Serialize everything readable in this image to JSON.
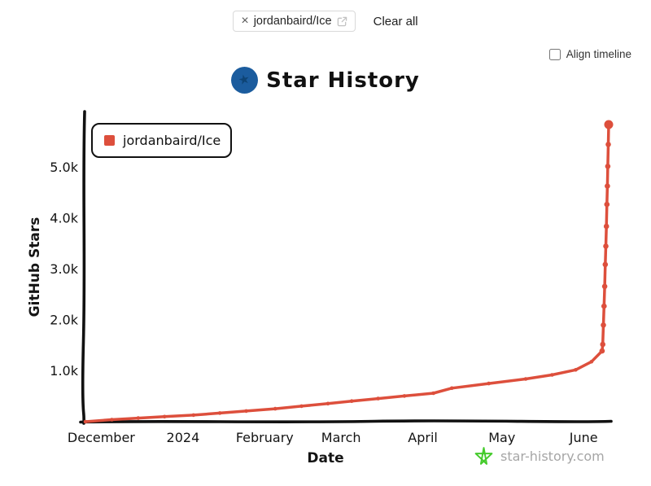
{
  "header": {
    "repo_chip": {
      "remove": "×",
      "label": "jordanbaird/Ice"
    },
    "clear_all": "Clear all"
  },
  "controls": {
    "align_timeline": "Align timeline",
    "align_timeline_checked": false
  },
  "title": "Star History",
  "icons": {
    "logo_star_glyph": "★"
  },
  "legend": {
    "label": "jordanbaird/Ice"
  },
  "watermark": {
    "label": "star-history.com"
  },
  "colors": {
    "series": "#dd4f3c",
    "axis": "#111111",
    "watermark_star": "#45cb2c",
    "watermark_text": "#a6a6a6",
    "logo_blue": "#1b5c9e"
  },
  "chart_data": {
    "type": "line",
    "title": "Star History",
    "xlabel": "Date",
    "ylabel": "GitHub Stars",
    "legend_position": "top-left",
    "grid": false,
    "x_axis": {
      "domain": [
        "2023-11-25",
        "2024-06-10 12:00"
      ],
      "ticks": [
        {
          "date": "2023-12-01",
          "label": "December"
        },
        {
          "date": "2024-01-01",
          "label": "2024"
        },
        {
          "date": "2024-02-01",
          "label": "February"
        },
        {
          "date": "2024-03-01",
          "label": "March"
        },
        {
          "date": "2024-04-01",
          "label": "April"
        },
        {
          "date": "2024-05-01",
          "label": "May"
        },
        {
          "date": "2024-06-01",
          "label": "June"
        }
      ]
    },
    "y_axis": {
      "max": 6000,
      "ticks": [
        {
          "value": 1000,
          "label": "1.0k"
        },
        {
          "value": 2000,
          "label": "2.0k"
        },
        {
          "value": 3000,
          "label": "3.0k"
        },
        {
          "value": 4000,
          "label": "4.0k"
        },
        {
          "value": 5000,
          "label": "5.0k"
        }
      ]
    },
    "series": [
      {
        "name": "jordanbaird/Ice",
        "color": "#dd4f3c",
        "points": [
          [
            "2023-11-25",
            0
          ],
          [
            "2023-12-05",
            40
          ],
          [
            "2023-12-15",
            70
          ],
          [
            "2023-12-25",
            100
          ],
          [
            "2024-01-05",
            130
          ],
          [
            "2024-01-15",
            170
          ],
          [
            "2024-01-25",
            210
          ],
          [
            "2024-02-05",
            255
          ],
          [
            "2024-02-15",
            305
          ],
          [
            "2024-02-25",
            355
          ],
          [
            "2024-03-05",
            405
          ],
          [
            "2024-03-15",
            455
          ],
          [
            "2024-03-25",
            505
          ],
          [
            "2024-04-05",
            560
          ],
          [
            "2024-04-12",
            660
          ],
          [
            "2024-04-26",
            750
          ],
          [
            "2024-05-10",
            840
          ],
          [
            "2024-05-20",
            920
          ],
          [
            "2024-05-29",
            1020
          ],
          [
            "2024-06-04",
            1180
          ],
          [
            "2024-06-08",
            1390
          ],
          [
            "2024-06-08 06:00",
            1520
          ],
          [
            "2024-06-08 12:00",
            1900
          ],
          [
            "2024-06-08 18:00",
            2270
          ],
          [
            "2024-06-09",
            2660
          ],
          [
            "2024-06-09 05:00",
            3090
          ],
          [
            "2024-06-09 10:00",
            3450
          ],
          [
            "2024-06-09 15:00",
            3840
          ],
          [
            "2024-06-09 20:00",
            4270
          ],
          [
            "2024-06-10",
            4630
          ],
          [
            "2024-06-10 04:00",
            5020
          ],
          [
            "2024-06-10 08:00",
            5450
          ],
          [
            "2024-06-10 12:00",
            5840
          ]
        ]
      }
    ]
  }
}
